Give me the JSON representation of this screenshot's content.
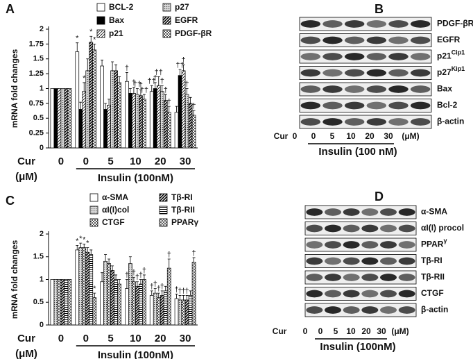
{
  "chart_data": [
    {
      "type": "bar",
      "panel": "A",
      "y_label": "mRNA fold changes",
      "x_prefix_label": "Cur",
      "x_unit_label": "(μM)",
      "group_label": "Insulin (100nM)",
      "categories": [
        "0",
        "0",
        "5",
        "10",
        "20",
        "30"
      ],
      "ylim": [
        0,
        2
      ],
      "yticks": [
        0,
        0.25,
        0.5,
        0.75,
        1,
        1.25,
        1.5,
        1.75,
        2
      ],
      "legend": "top",
      "series": [
        {
          "name": "BCL-2",
          "pattern": "white",
          "values": [
            1,
            1.62,
            1.38,
            1.12,
            0.95,
            0.6
          ],
          "errors": [
            0,
            0.15,
            0.1,
            0.15,
            0.1,
            0.1
          ],
          "significance": [
            null,
            "*",
            null,
            "†",
            "††",
            null
          ]
        },
        {
          "name": "Bax",
          "pattern": "black",
          "values": [
            1,
            0.65,
            0.65,
            0.92,
            1.0,
            1.22
          ],
          "errors": [
            0,
            0.12,
            0.1,
            0.08,
            0.1,
            0.1
          ],
          "significance": [
            null,
            null,
            null,
            null,
            "†",
            "††"
          ]
        },
        {
          "name": "p21",
          "pattern": "diag-thin",
          "values": [
            1,
            0.95,
            0.72,
            0.92,
            1.05,
            1.3
          ],
          "errors": [
            0,
            0.15,
            0.1,
            0.1,
            0.15,
            0.1
          ],
          "significance": [
            null,
            "*",
            null,
            "†",
            "††",
            "†"
          ]
        },
        {
          "name": "p27",
          "pattern": "dots",
          "values": [
            1,
            1.3,
            1.3,
            0.9,
            0.95,
            0.9
          ],
          "errors": [
            0,
            0.2,
            0.15,
            0.1,
            0.1,
            0.1
          ],
          "significance": [
            null,
            null,
            null,
            "††",
            "†",
            "†"
          ]
        },
        {
          "name": "EGFR",
          "pattern": "diag-thick",
          "values": [
            1,
            1.78,
            1.3,
            0.88,
            0.8,
            0.75
          ],
          "errors": [
            0,
            0.1,
            0.1,
            0.1,
            0.1,
            0.1
          ],
          "significance": [
            null,
            "*",
            null,
            "†",
            "†",
            null
          ]
        },
        {
          "name": "PDGF-βR",
          "pattern": "checker",
          "values": [
            1,
            1.65,
            1.1,
            0.82,
            0.6,
            0.55
          ],
          "errors": [
            0,
            0.1,
            0.1,
            0.08,
            0.1,
            0.08
          ],
          "significance": [
            null,
            "*",
            null,
            "††",
            "†",
            "†"
          ]
        }
      ]
    },
    {
      "type": "bar",
      "panel": "C",
      "y_label": "mRNA fold changes",
      "x_prefix_label": "Cur",
      "x_unit_label": "(μM)",
      "group_label": "Insulin (100nM)",
      "categories": [
        "0",
        "0",
        "5",
        "10",
        "20",
        "30"
      ],
      "ylim": [
        0,
        2
      ],
      "yticks": [
        0,
        0.5,
        1,
        1.5,
        2
      ],
      "legend": "top",
      "series": [
        {
          "name": "α-SMA",
          "pattern": "white",
          "values": [
            1,
            1.65,
            0.95,
            0.8,
            0.65,
            0.58
          ],
          "errors": [
            0,
            0.1,
            0.2,
            0.2,
            0.1,
            0.1
          ],
          "significance": [
            null,
            "*",
            null,
            "†",
            "†",
            "†"
          ]
        },
        {
          "name": "αI(I)col",
          "pattern": "dots",
          "values": [
            1,
            1.7,
            1.4,
            1.35,
            0.7,
            0.55
          ],
          "errors": [
            0,
            0.1,
            0.15,
            0.15,
            0.1,
            0.1
          ],
          "significance": [
            null,
            "*",
            null,
            null,
            "†",
            "†"
          ]
        },
        {
          "name": "CTGF",
          "pattern": "checker",
          "values": [
            1,
            1.7,
            1.35,
            0.95,
            0.6,
            0.55
          ],
          "errors": [
            0,
            0.08,
            0.1,
            0.1,
            0.1,
            0.1
          ],
          "significance": [
            null,
            "*",
            null,
            "†",
            "†",
            "†"
          ]
        },
        {
          "name": "Tβ-RI",
          "pattern": "diag-thick",
          "values": [
            1,
            1.6,
            1.2,
            0.85,
            0.65,
            0.55
          ],
          "errors": [
            0,
            0.1,
            0.1,
            0.1,
            0.1,
            0.1
          ],
          "significance": [
            null,
            "*",
            null,
            "†",
            "†",
            "†"
          ]
        },
        {
          "name": "Tβ-RII",
          "pattern": "hlines",
          "values": [
            1,
            1.55,
            1.0,
            0.9,
            0.75,
            0.65
          ],
          "errors": [
            0,
            0.1,
            0.1,
            0.1,
            0.1,
            0.1
          ],
          "significance": [
            null,
            null,
            null,
            "†",
            null,
            null
          ]
        },
        {
          "name": "PPARγ",
          "pattern": "cross",
          "values": [
            1,
            0.6,
            0.9,
            1.0,
            1.25,
            1.38
          ],
          "errors": [
            0,
            0.1,
            0.1,
            0.1,
            0.2,
            0.1
          ],
          "significance": [
            null,
            "*",
            null,
            "†",
            "†",
            "†"
          ]
        }
      ]
    }
  ],
  "blots": [
    {
      "panel": "B",
      "lane_prefix": "Cur",
      "lanes": [
        "0",
        "0",
        "5",
        "10",
        "20",
        "30"
      ],
      "lane_unit": "(μM)",
      "group_label": "Insulin (100 nM)",
      "rows": [
        {
          "label": "PDGF-βR"
        },
        {
          "label": "EGFR"
        },
        {
          "label": "p21",
          "sup": "Cip1"
        },
        {
          "label": "p27",
          "sup": "Kip1"
        },
        {
          "label": "Bax"
        },
        {
          "label": "Bcl-2"
        },
        {
          "label": "β-actin"
        }
      ]
    },
    {
      "panel": "D",
      "lane_prefix": "Cur",
      "lanes": [
        "0",
        "0",
        "5",
        "10",
        "20",
        "30"
      ],
      "lane_unit": "(μM)",
      "group_label": "Insulin (100nM)",
      "rows": [
        {
          "label": "α-SMA"
        },
        {
          "label": "αI(I) procol"
        },
        {
          "label": "PPAR",
          "sup": "γ"
        },
        {
          "label": "Tβ-RI"
        },
        {
          "label": "Tβ-RII"
        },
        {
          "label": "CTGF"
        },
        {
          "label": "β-actin"
        }
      ]
    }
  ]
}
